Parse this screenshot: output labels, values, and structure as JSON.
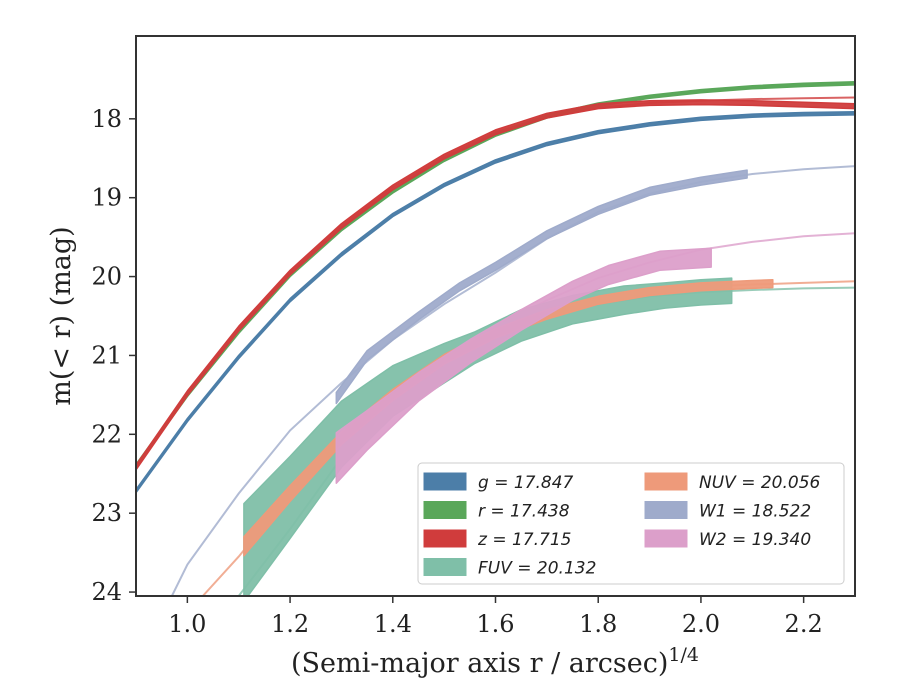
{
  "chart_data": {
    "type": "line",
    "xlabel": "(Semi-major axis r / arcsec)",
    "xlabel_superscript": "1/4",
    "ylabel": "m(< r) (mag)",
    "xlim": [
      0.9,
      2.3
    ],
    "ylim": [
      24.05,
      16.95
    ],
    "y_inverted": true,
    "grid": false,
    "legend_position": "lower-right",
    "x_ticks": [
      1.0,
      1.2,
      1.4,
      1.6,
      1.8,
      2.0,
      2.2
    ],
    "x_tick_labels": [
      "1.0",
      "1.2",
      "1.4",
      "1.6",
      "1.8",
      "2.0",
      "2.2"
    ],
    "y_ticks": [
      18,
      19,
      20,
      21,
      22,
      23,
      24
    ],
    "y_tick_labels": [
      "18",
      "19",
      "20",
      "21",
      "22",
      "23",
      "24"
    ],
    "series": [
      {
        "name": "g = 17.847",
        "legend_label": "g = 17.847",
        "color": "#4c7ea8",
        "model_x": [
          0.9,
          1.0,
          1.1,
          1.2,
          1.3,
          1.4,
          1.5,
          1.6,
          1.7,
          1.8,
          1.9,
          2.0,
          2.1,
          2.2,
          2.3
        ],
        "model_y": [
          22.72,
          21.82,
          21.02,
          20.3,
          19.72,
          19.22,
          18.84,
          18.54,
          18.32,
          18.17,
          18.07,
          18.0,
          17.96,
          17.94,
          17.93
        ],
        "obs_x": [
          0.9,
          1.0,
          1.1,
          1.2,
          1.3,
          1.4,
          1.5,
          1.6,
          1.7,
          1.8,
          1.9,
          2.0,
          2.1,
          2.2,
          2.3
        ],
        "obs_y": [
          22.72,
          21.82,
          21.02,
          20.3,
          19.72,
          19.22,
          18.84,
          18.54,
          18.32,
          18.17,
          18.07,
          18.0,
          17.96,
          17.94,
          17.93
        ],
        "obs_err": [
          0.02,
          0.02,
          0.02,
          0.02,
          0.02,
          0.02,
          0.02,
          0.02,
          0.02,
          0.02,
          0.02,
          0.02,
          0.02,
          0.02,
          0.02
        ]
      },
      {
        "name": "r = 17.438",
        "legend_label": "r = 17.438",
        "color": "#5aa75a",
        "model_x": [
          0.9,
          1.0,
          1.1,
          1.2,
          1.3,
          1.4,
          1.5,
          1.6,
          1.7,
          1.8,
          1.9,
          2.0,
          2.1,
          2.2,
          2.3
        ],
        "model_y": [
          22.4,
          21.5,
          20.7,
          19.98,
          19.4,
          18.92,
          18.52,
          18.2,
          17.97,
          17.82,
          17.72,
          17.65,
          17.6,
          17.57,
          17.55
        ],
        "obs_x": [
          0.9,
          1.0,
          1.1,
          1.2,
          1.3,
          1.4,
          1.5,
          1.6,
          1.7,
          1.8,
          1.9,
          2.0,
          2.1,
          2.2,
          2.3
        ],
        "obs_y": [
          22.4,
          21.5,
          20.7,
          19.98,
          19.4,
          18.92,
          18.52,
          18.2,
          17.97,
          17.82,
          17.72,
          17.65,
          17.6,
          17.57,
          17.55
        ],
        "obs_err": [
          0.02,
          0.02,
          0.02,
          0.02,
          0.02,
          0.02,
          0.02,
          0.02,
          0.02,
          0.02,
          0.02,
          0.02,
          0.02,
          0.02,
          0.02
        ]
      },
      {
        "name": "z = 17.715",
        "legend_label": "z = 17.715",
        "color": "#d03c3c",
        "model_x": [
          0.9,
          1.0,
          1.1,
          1.2,
          1.3,
          1.4,
          1.5,
          1.6,
          1.7,
          1.8,
          1.9,
          2.0,
          2.1,
          2.2,
          2.3
        ],
        "model_y": [
          22.42,
          21.48,
          20.66,
          19.95,
          19.36,
          18.87,
          18.48,
          18.17,
          17.97,
          17.86,
          17.8,
          17.77,
          17.75,
          17.74,
          17.73
        ],
        "obs_x": [
          0.9,
          1.0,
          1.1,
          1.2,
          1.3,
          1.4,
          1.5,
          1.6,
          1.7,
          1.8,
          1.9,
          2.0,
          2.1,
          2.2,
          2.3
        ],
        "obs_y": [
          22.42,
          21.48,
          20.66,
          19.95,
          19.36,
          18.87,
          18.48,
          18.17,
          17.96,
          17.84,
          17.8,
          17.79,
          17.8,
          17.82,
          17.84
        ],
        "obs_err": [
          0.03,
          0.03,
          0.03,
          0.03,
          0.03,
          0.03,
          0.03,
          0.03,
          0.03,
          0.03,
          0.03,
          0.03,
          0.03,
          0.03,
          0.03
        ]
      },
      {
        "name": "FUV = 20.132",
        "legend_label": "FUV = 20.132",
        "color": "#7fbfa8",
        "model_x": [
          1.1,
          1.2,
          1.3,
          1.4,
          1.5,
          1.6,
          1.7,
          1.8,
          1.9,
          2.0,
          2.1,
          2.2,
          2.3
        ],
        "model_y": [
          24.05,
          23.2,
          22.3,
          21.6,
          21.08,
          20.75,
          20.5,
          20.35,
          20.25,
          20.2,
          20.17,
          20.15,
          20.14
        ],
        "obs_x": [
          1.11,
          1.2,
          1.3,
          1.4,
          1.5,
          1.56,
          1.65,
          1.75,
          1.85,
          1.93,
          2.0,
          2.06
        ],
        "obs_y": [
          23.5,
          22.8,
          22.0,
          21.45,
          21.1,
          20.9,
          20.62,
          20.42,
          20.3,
          20.24,
          20.2,
          20.18
        ],
        "obs_err": [
          0.62,
          0.52,
          0.42,
          0.32,
          0.25,
          0.2,
          0.2,
          0.18,
          0.18,
          0.16,
          0.16,
          0.16
        ]
      },
      {
        "name": "NUV = 20.056",
        "legend_label": "NUV = 20.056",
        "color": "#ee9a7a",
        "model_x": [
          1.03,
          1.1,
          1.2,
          1.3,
          1.4,
          1.5,
          1.6,
          1.7,
          1.8,
          1.9,
          2.0,
          2.1,
          2.2,
          2.3
        ],
        "model_y": [
          24.05,
          23.55,
          22.75,
          22.05,
          21.5,
          21.05,
          20.72,
          20.48,
          20.3,
          20.19,
          20.13,
          20.1,
          20.08,
          20.06
        ],
        "obs_x": [
          1.11,
          1.2,
          1.3,
          1.4,
          1.5,
          1.6,
          1.7,
          1.8,
          1.9,
          2.0,
          2.1,
          2.14
        ],
        "obs_y": [
          23.42,
          22.75,
          22.05,
          21.5,
          21.05,
          20.72,
          20.48,
          20.3,
          20.19,
          20.13,
          20.1,
          20.09
        ],
        "obs_err": [
          0.12,
          0.1,
          0.08,
          0.07,
          0.06,
          0.06,
          0.06,
          0.05,
          0.05,
          0.05,
          0.05,
          0.05
        ]
      },
      {
        "name": "W1 = 18.522",
        "legend_label": "W1 = 18.522",
        "color": "#9fabcb",
        "model_x": [
          0.97,
          1.0,
          1.1,
          1.2,
          1.3,
          1.4,
          1.5,
          1.6,
          1.7,
          1.8,
          1.9,
          2.0,
          2.1,
          2.2,
          2.3
        ],
        "model_y": [
          24.05,
          23.65,
          22.75,
          21.95,
          21.35,
          20.8,
          20.35,
          19.95,
          19.52,
          19.18,
          18.95,
          18.8,
          18.7,
          18.64,
          18.6
        ],
        "obs_x": [
          1.29,
          1.35,
          1.45,
          1.53,
          1.6,
          1.7,
          1.8,
          1.9,
          2.0,
          2.09
        ],
        "obs_y": [
          21.54,
          21.0,
          20.5,
          20.13,
          19.87,
          19.47,
          19.16,
          18.92,
          18.79,
          18.7
        ],
        "obs_err": [
          0.07,
          0.06,
          0.05,
          0.05,
          0.05,
          0.05,
          0.05,
          0.05,
          0.05,
          0.05
        ]
      },
      {
        "name": "W2 = 19.340",
        "legend_label": "W2 = 19.340",
        "color": "#dc9fca",
        "model_x": [
          1.3,
          1.4,
          1.5,
          1.6,
          1.7,
          1.8,
          1.9,
          2.0,
          2.1,
          2.2,
          2.3
        ],
        "model_y": [
          22.3,
          21.65,
          21.1,
          20.65,
          20.3,
          20.02,
          19.82,
          19.66,
          19.56,
          19.49,
          19.45
        ],
        "obs_x": [
          1.29,
          1.35,
          1.45,
          1.55,
          1.65,
          1.75,
          1.82,
          1.92,
          2.02
        ],
        "obs_y": [
          22.3,
          21.95,
          21.4,
          20.95,
          20.55,
          20.18,
          19.98,
          19.8,
          19.76
        ],
        "obs_err": [
          0.32,
          0.25,
          0.18,
          0.15,
          0.13,
          0.12,
          0.12,
          0.12,
          0.12
        ]
      }
    ]
  }
}
